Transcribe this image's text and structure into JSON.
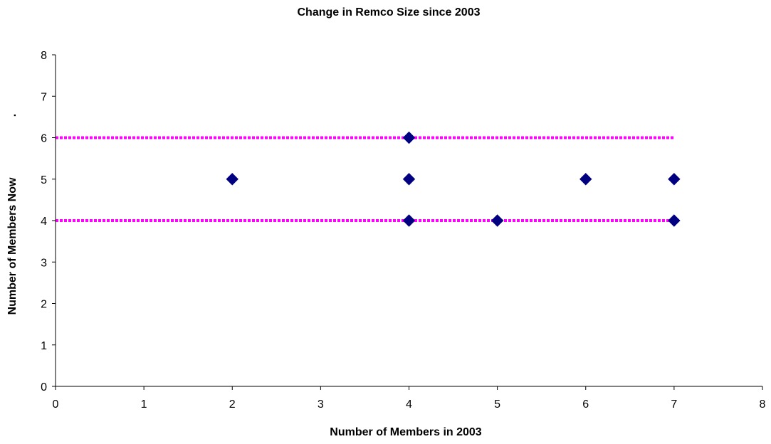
{
  "chart_data": {
    "type": "scatter",
    "title": "Change in Remco Size since 2003",
    "xlabel": "Number of Members in 2003",
    "ylabel": "Number of Members Now",
    "ylabel_marker": ".",
    "xlim": [
      0,
      8
    ],
    "ylim": [
      0,
      8
    ],
    "xticks": [
      "0",
      "1",
      "2",
      "3",
      "4",
      "5",
      "6",
      "7",
      "8"
    ],
    "yticks": [
      "0",
      "1",
      "2",
      "3",
      "4",
      "5",
      "6",
      "7",
      "8"
    ],
    "grid": false,
    "legend": "none",
    "series": [
      {
        "marker": "diamond",
        "color": "#000080",
        "points": [
          {
            "x": 2,
            "y": 5
          },
          {
            "x": 4,
            "y": 6
          },
          {
            "x": 4,
            "y": 5
          },
          {
            "x": 4,
            "y": 4
          },
          {
            "x": 5,
            "y": 4
          },
          {
            "x": 6,
            "y": 5
          },
          {
            "x": 7,
            "y": 5
          },
          {
            "x": 7,
            "y": 4
          }
        ]
      }
    ],
    "reference_lines": [
      {
        "y": 6,
        "x_from": 0,
        "x_to": 7,
        "style": "dotted",
        "color": "#FF00FF"
      },
      {
        "y": 4,
        "x_from": 0,
        "x_to": 7,
        "style": "dotted",
        "color": "#FF00FF"
      }
    ]
  }
}
